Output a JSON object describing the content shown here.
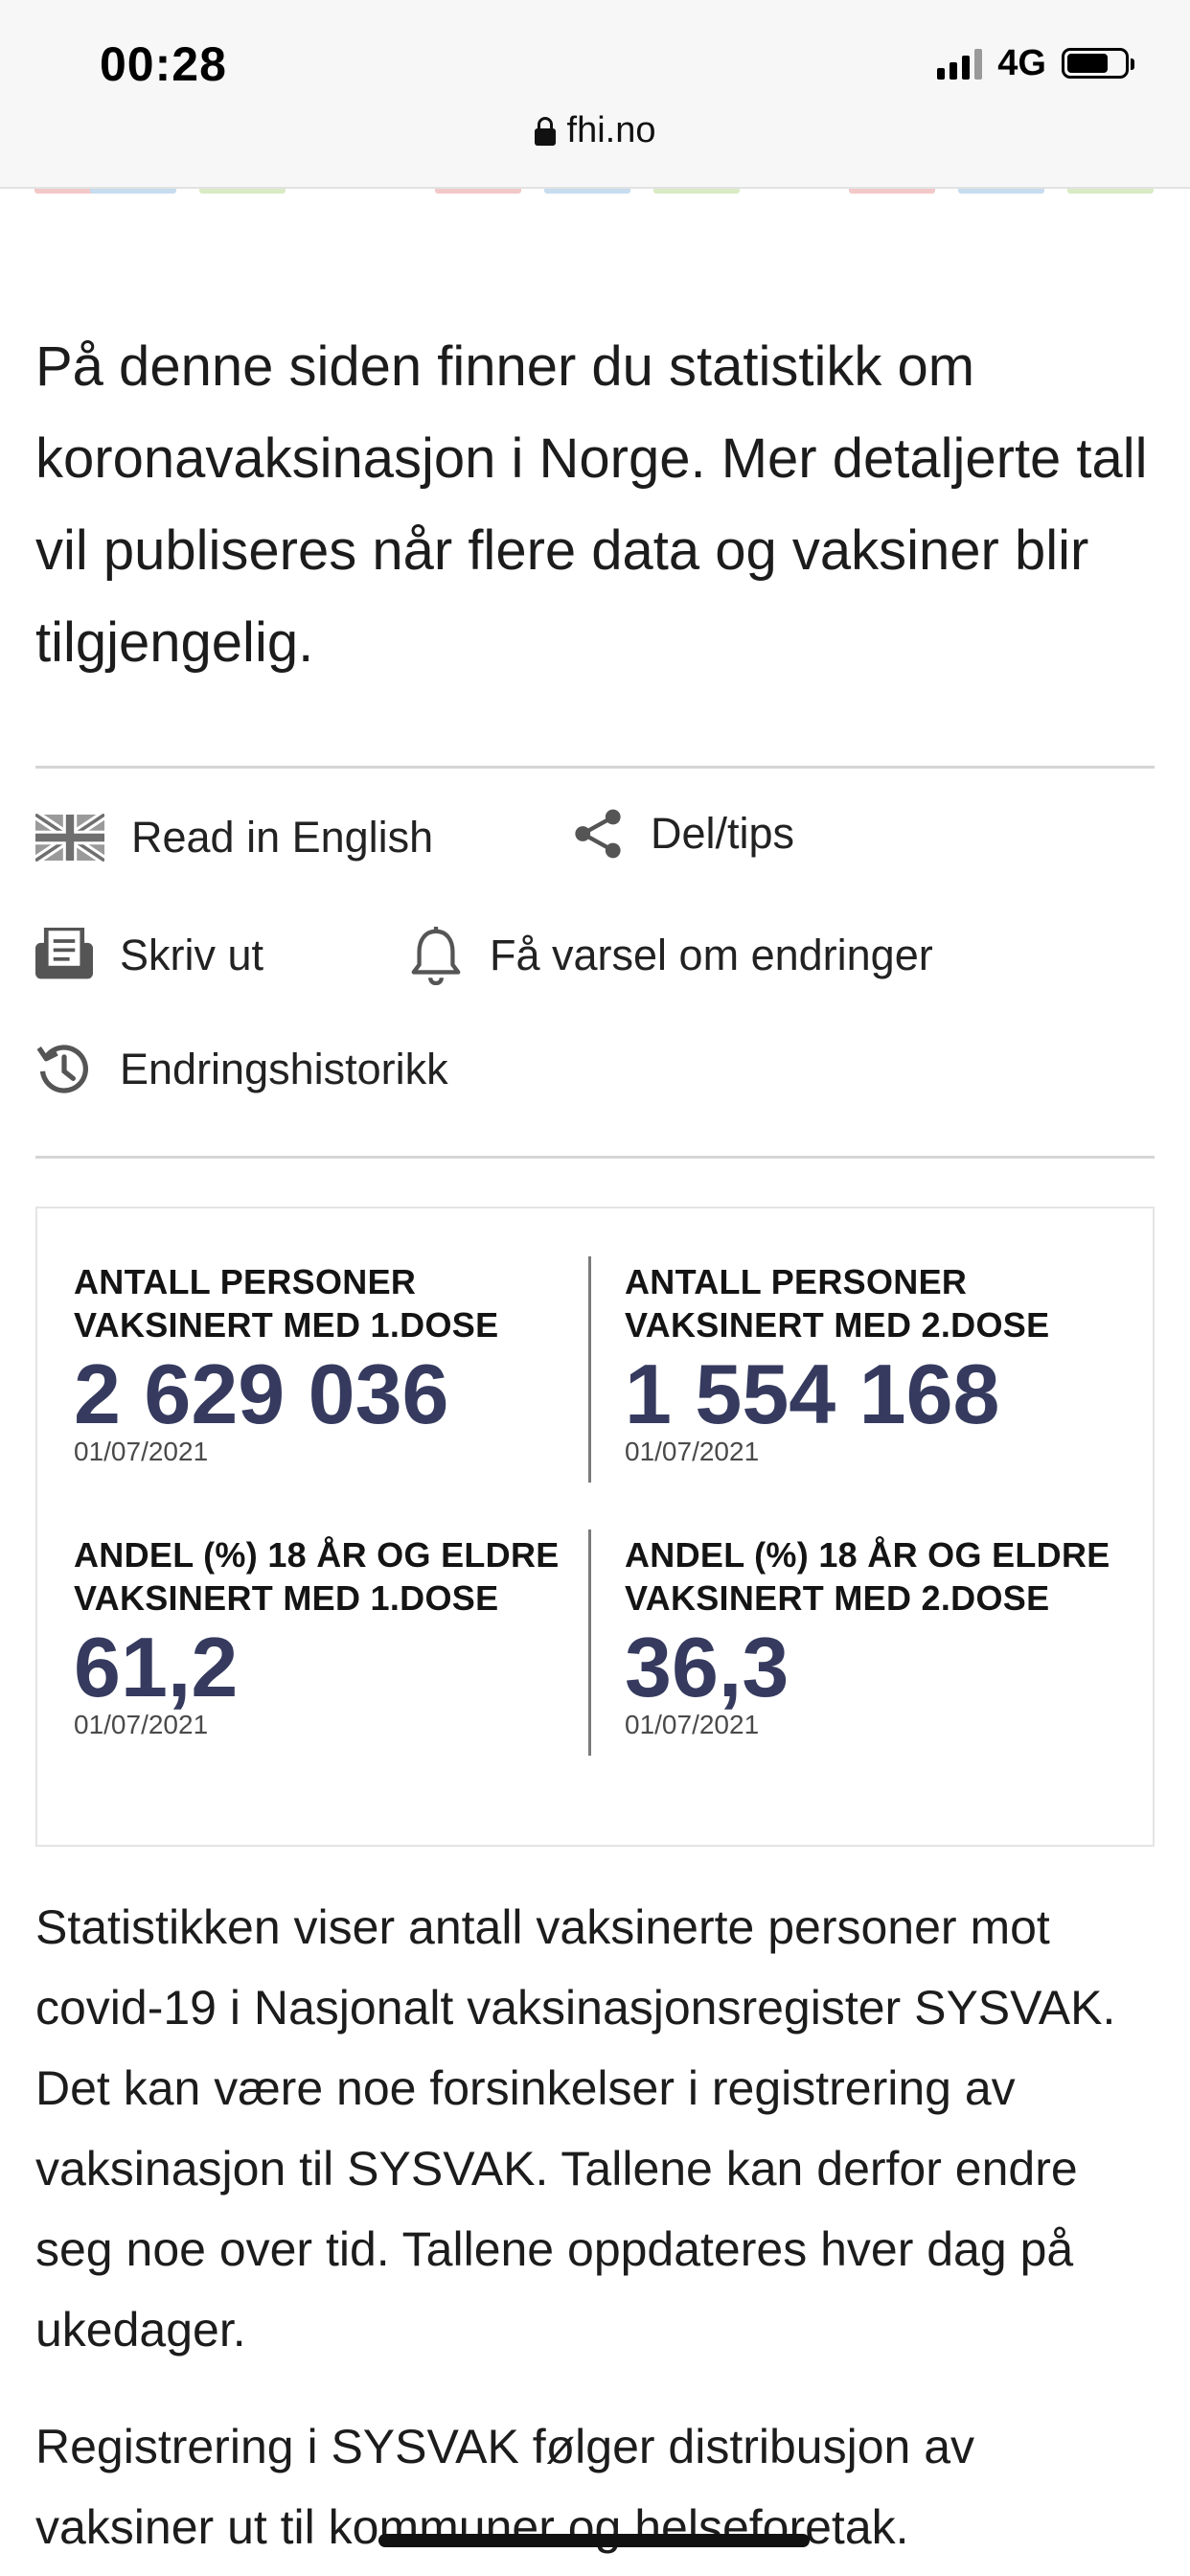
{
  "status_bar": {
    "time": "00:28",
    "network": "4G",
    "signal_bars": 4,
    "battery_level": 0.72
  },
  "browser": {
    "url": "fhi.no"
  },
  "color_strip": [
    "#f3c8c8",
    "#c7dcef",
    "#d8ebc5",
    "#f3c8c8",
    "#c7dcef",
    "#d8ebc5",
    "#f3c8c8",
    "#c7dcef",
    "#d8ebc5"
  ],
  "intro_text": "På denne siden finner du statistikk om koronavaksinasjon i Norge. Mer detaljerte tall vil publiseres når flere data og vaksiner blir tilgjengelig.",
  "actions": {
    "read_english": {
      "label": "Read in English",
      "icon": "uk-flag-icon"
    },
    "share": {
      "label": "Del/tips",
      "icon": "share-icon"
    },
    "print": {
      "label": "Skriv ut",
      "icon": "printer-icon"
    },
    "notify": {
      "label": "Få varsel om endringer",
      "icon": "bell-icon"
    },
    "history": {
      "label": "Endringshistorikk",
      "icon": "history-icon"
    }
  },
  "stats": [
    {
      "label_line1": "ANTALL PERSONER",
      "label_line2": "VAKSINERT MED 1.DOSE",
      "value": "2 629 036",
      "date": "01/07/2021"
    },
    {
      "label_line1": "ANTALL PERSONER",
      "label_line2": "VAKSINERT MED 2.DOSE",
      "value": "1 554 168",
      "date": "01/07/2021"
    },
    {
      "label_line1": "ANDEL (%) 18 ÅR OG ELDRE",
      "label_line2": "VAKSINERT MED 1.DOSE",
      "value": "61,2",
      "date": "01/07/2021"
    },
    {
      "label_line1": "ANDEL (%) 18 ÅR OG ELDRE",
      "label_line2": "VAKSINERT MED 2.DOSE",
      "value": "36,3",
      "date": "01/07/2021"
    }
  ],
  "paragraphs": [
    "Statistikken viser antall vaksinerte personer mot covid-19 i Nasjonalt vaksinasjonsregister SYSVAK. Det kan være noe forsinkelser i registrering av vaksinasjon til SYSVAK. Tallene kan derfor endre seg noe over tid. Tallene oppdateres hver dag på ukedager.",
    "Registrering i SYSVAK følger distribusjon av vaksiner ut til kommuner og helseforetak."
  ],
  "colors": {
    "stat_value": "#353a5e",
    "divider": "#d5d5d5"
  }
}
